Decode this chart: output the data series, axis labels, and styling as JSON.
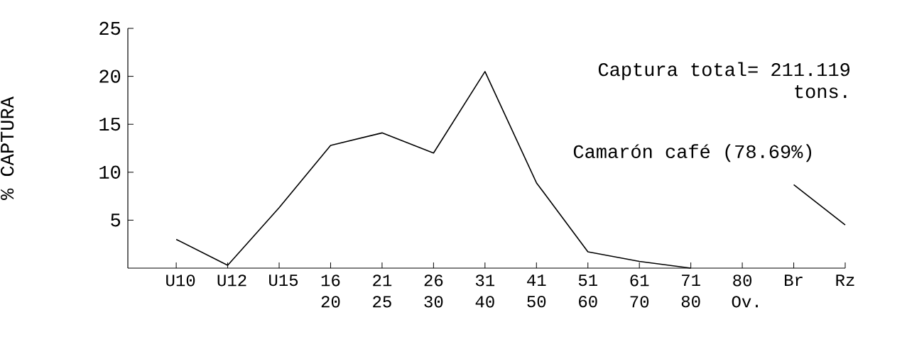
{
  "chart_data": {
    "type": "line",
    "ylabel": "% CAPTURA",
    "categories": [
      "U10",
      "U12",
      "U15",
      "16 20",
      "21 25",
      "26 30",
      "31 40",
      "41 50",
      "51 60",
      "61 70",
      "71 80",
      "80 Ov.",
      "Br",
      "Rz"
    ],
    "values": [
      3.0,
      0.3,
      6.3,
      12.8,
      14.1,
      12.0,
      20.5,
      8.9,
      1.7,
      0.7,
      0,
      null,
      8.7,
      4.5
    ],
    "color": "#000000",
    "ylim": [
      0,
      25
    ],
    "yticks": [
      5,
      10,
      15,
      20,
      25
    ],
    "annotations": [
      "Captura total= 211.119 tons.",
      "Camarón café (78.69%)"
    ]
  }
}
